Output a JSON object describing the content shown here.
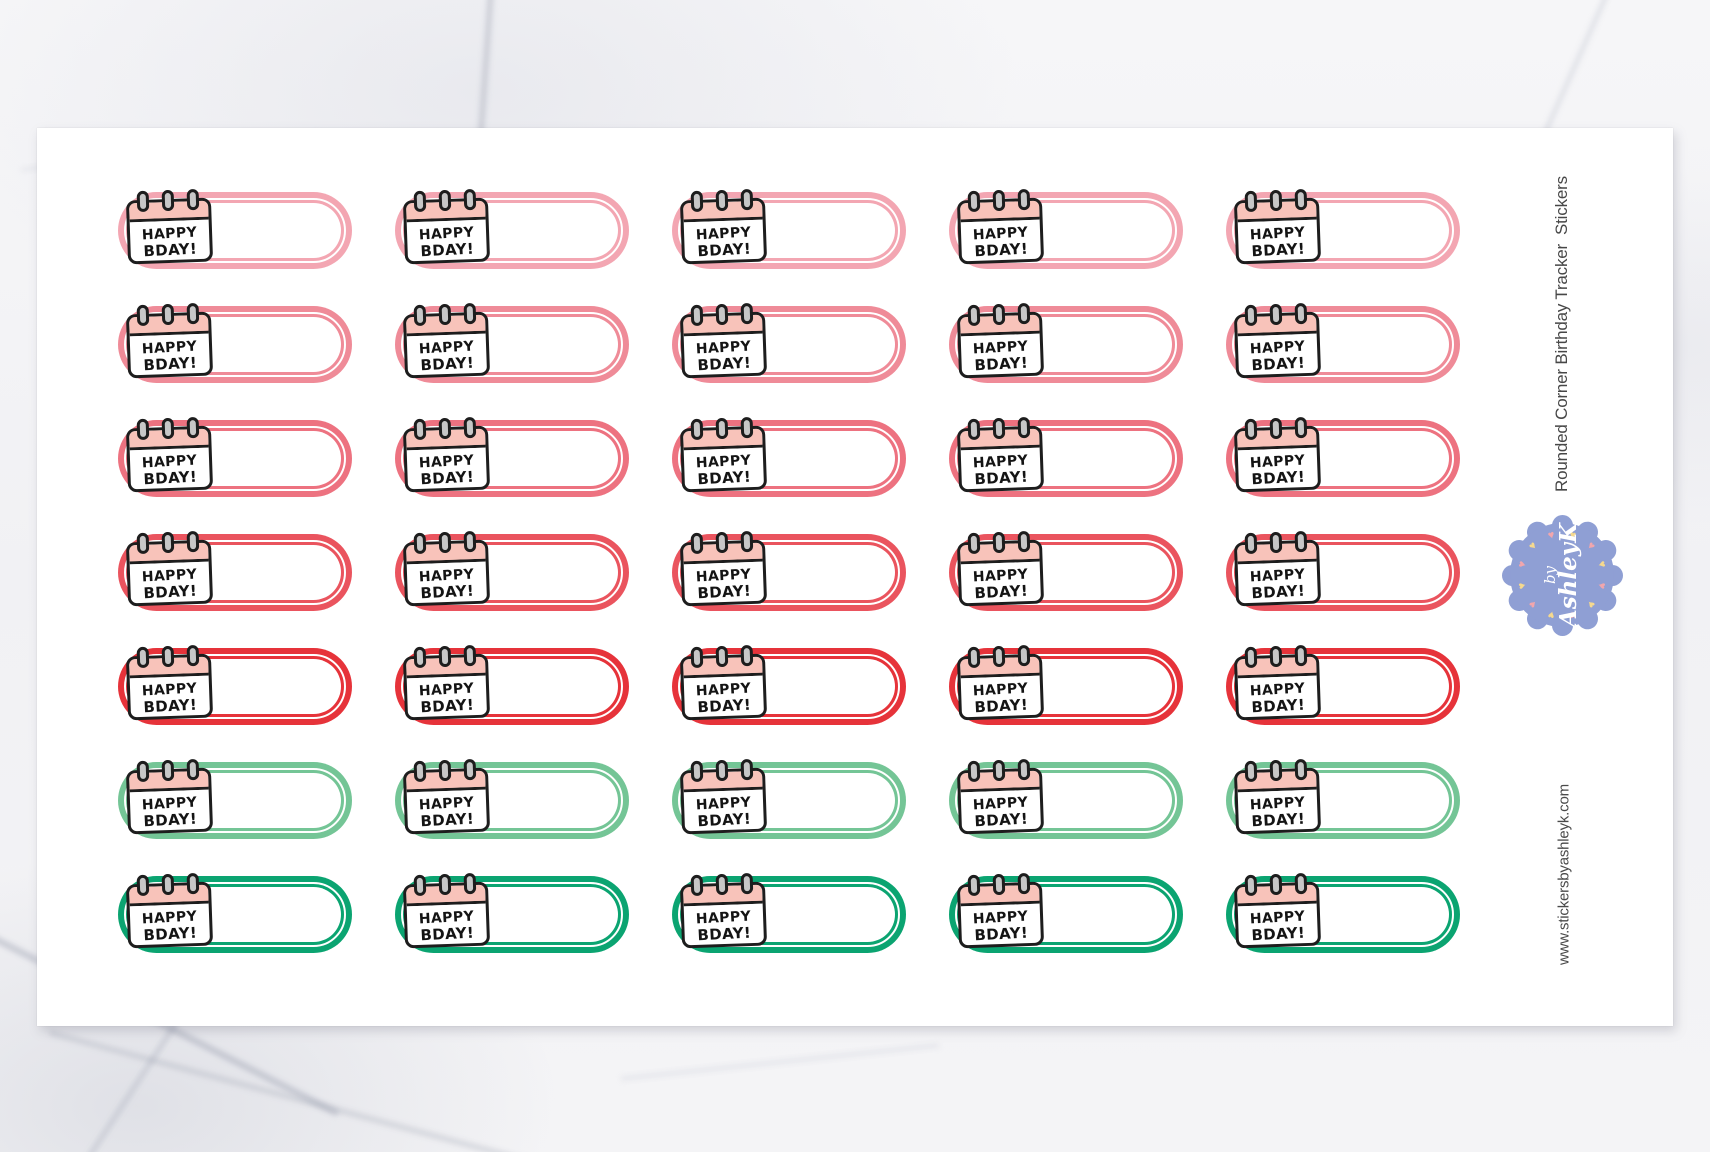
{
  "product": {
    "title": "Rounded Corner Birthday Tracker  Stickers",
    "website": "www.stickersbyashleyk.com"
  },
  "badge": {
    "prefix": "by",
    "name": "AshleyK",
    "color": "#8f9fd4",
    "heart_glyph": "♥",
    "heart_colors": [
      "#f6d98e",
      "#f2a6ad"
    ],
    "heart_count": 12
  },
  "sticker": {
    "line1": "HAPPY",
    "line2": "BDAY!",
    "header_color": "#f8c3ba",
    "ring_color": "#c7c7c7",
    "outline_color": "#1d1d1d"
  },
  "sheet": {
    "columns": 5,
    "row_colors": [
      {
        "label": "light-pink",
        "color": "#f3a6b2"
      },
      {
        "label": "pink",
        "color": "#ef8b98"
      },
      {
        "label": "salmon",
        "color": "#ed7280"
      },
      {
        "label": "coral-red",
        "color": "#ea545e"
      },
      {
        "label": "red",
        "color": "#e6333a"
      },
      {
        "label": "mint-green",
        "color": "#74c596"
      },
      {
        "label": "green",
        "color": "#0ba471"
      }
    ]
  }
}
